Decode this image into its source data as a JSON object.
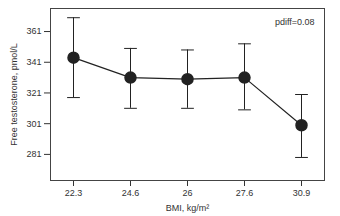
{
  "chart_data": {
    "type": "line",
    "x_label": "BMI, kg/m²",
    "y_label": "Free testosterone, pmol/L",
    "annotations": [
      "pdiff=0.08"
    ],
    "categories": [
      "22.3",
      "24.6",
      "26",
      "27.6",
      "30.9"
    ],
    "values": [
      344,
      331,
      330,
      331,
      300
    ],
    "error_lower": [
      318,
      311,
      311,
      310,
      279
    ],
    "error_upper": [
      370,
      350,
      349,
      353,
      320
    ],
    "color": "#222222",
    "marker": "circle",
    "ylim": [
      264,
      376
    ],
    "yticks": [
      281,
      301,
      321,
      341,
      361
    ],
    "grid": false
  }
}
